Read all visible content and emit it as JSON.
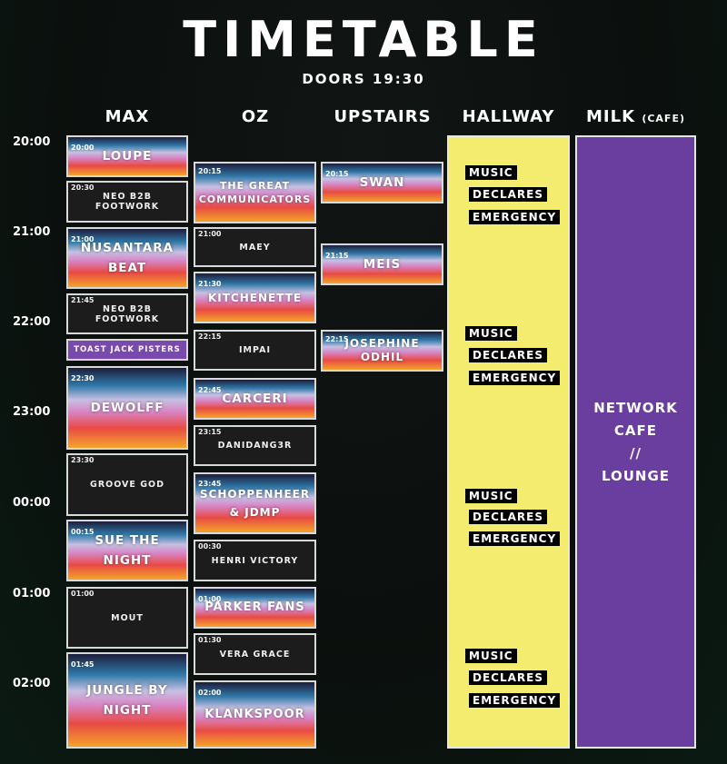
{
  "header": {
    "title": "TIMETABLE",
    "doors": "DOORS 19:30"
  },
  "columns": {
    "max": "MAX",
    "oz": "OZ",
    "upstairs": "UPSTAIRS",
    "hallway": "HALLWAY",
    "milk": "MILK",
    "milk_sub": "(CAFE)"
  },
  "times": [
    "20:00",
    "21:00",
    "22:00",
    "23:00",
    "00:00",
    "01:00",
    "02:00"
  ],
  "max": [
    {
      "start": "20:00",
      "name": "LOUPE"
    },
    {
      "start": "20:30",
      "name": "NEO B2B FOOTWORK"
    },
    {
      "start": "21:00",
      "name": "NUSANTARA BEAT"
    },
    {
      "start": "21:45",
      "name": "NEO B2B FOOTWORK"
    },
    {
      "start": "",
      "name": "TOAST JACK PISTERS"
    },
    {
      "start": "22:30",
      "name": "DEWOLFF"
    },
    {
      "start": "23:30",
      "name": "GROOVE GOD"
    },
    {
      "start": "00:15",
      "name": "SUE THE NIGHT"
    },
    {
      "start": "01:00",
      "name": "MOUT"
    },
    {
      "start": "01:45",
      "name": "JUNGLE BY NIGHT"
    }
  ],
  "oz": [
    {
      "start": "20:15",
      "name": "THE GREAT COMMUNICATORS"
    },
    {
      "start": "21:00",
      "name": "MAEY"
    },
    {
      "start": "21:30",
      "name": "KITCHENETTE"
    },
    {
      "start": "22:15",
      "name": "IMPAI"
    },
    {
      "start": "22:45",
      "name": "CARCERI"
    },
    {
      "start": "23:15",
      "name": "DANIDANG3R"
    },
    {
      "start": "23:45",
      "name": "SCHOPPENHEER & JDMP"
    },
    {
      "start": "00:30",
      "name": "HENRI VICTORY"
    },
    {
      "start": "01:00",
      "name": "PARKER FANS"
    },
    {
      "start": "01:30",
      "name": "VERA GRACE"
    },
    {
      "start": "02:00",
      "name": "KLANKSPOOR"
    }
  ],
  "upstairs": [
    {
      "start": "20:15",
      "name": "SWAN"
    },
    {
      "start": "21:15",
      "name": "MEIS"
    },
    {
      "start": "22:15",
      "name": "JOSEPHINE ODHIL"
    }
  ],
  "hallway_tag": [
    "MUSIC",
    "DECLARES",
    "EMERGENCY"
  ],
  "milk_text": [
    "NETWORK",
    "CAFE",
    "//",
    "LOUNGE"
  ]
}
